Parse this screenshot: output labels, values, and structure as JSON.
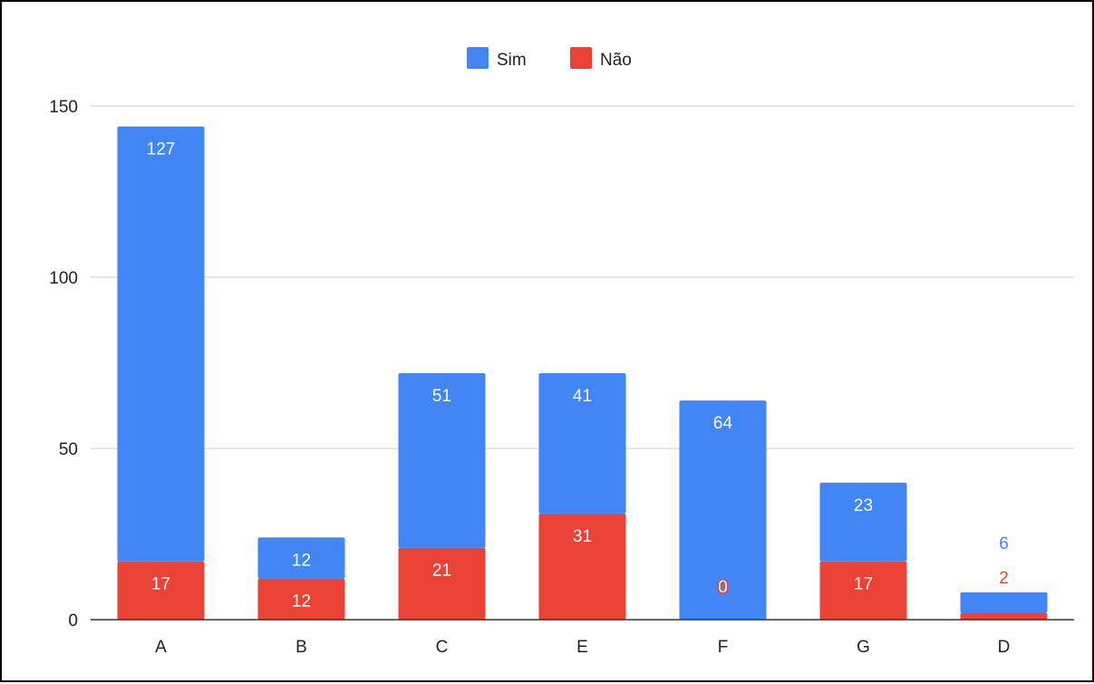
{
  "chart_data": {
    "type": "bar",
    "stacked": true,
    "title": "",
    "xlabel": "",
    "ylabel": "",
    "categories": [
      "A",
      "B",
      "C",
      "E",
      "F",
      "G",
      "D"
    ],
    "series": [
      {
        "name": "Não",
        "color": "#ea4335",
        "values": [
          17,
          12,
          21,
          31,
          0,
          17,
          2
        ]
      },
      {
        "name": "Sim",
        "color": "#4285f4",
        "values": [
          127,
          12,
          51,
          41,
          64,
          23,
          6
        ]
      }
    ],
    "ylim": [
      0,
      150
    ],
    "yticks": [
      0,
      50,
      100,
      150
    ],
    "grid": true,
    "legend_position": "top-center"
  }
}
